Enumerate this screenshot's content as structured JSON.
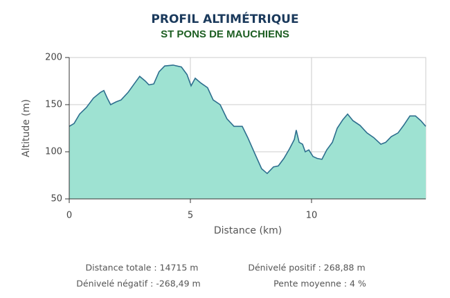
{
  "chart_data": {
    "type": "area",
    "title": "PROFIL ALTIMÉTRIQUE",
    "subtitle": "ST PONS DE MAUCHIENS",
    "x_label": "Distance (km)",
    "y_label": "Altitude (m)",
    "x": [
      0,
      0.2,
      0.43,
      0.71,
      1.0,
      1.29,
      1.43,
      1.57,
      1.71,
      1.94,
      2.14,
      2.43,
      2.71,
      2.91,
      3.14,
      3.29,
      3.49,
      3.71,
      3.94,
      4.29,
      4.63,
      4.86,
      5.03,
      5.2,
      5.43,
      5.71,
      5.94,
      6.23,
      6.51,
      6.8,
      7.14,
      7.37,
      7.66,
      7.94,
      8.17,
      8.43,
      8.63,
      8.86,
      9.09,
      9.29,
      9.37,
      9.49,
      9.63,
      9.74,
      9.89,
      10.06,
      10.23,
      10.43,
      10.63,
      10.86,
      11.06,
      11.29,
      11.49,
      11.71,
      12.0,
      12.29,
      12.57,
      12.86,
      13.06,
      13.29,
      13.57,
      13.8,
      14.06,
      14.29,
      14.51,
      14.715
    ],
    "series": [
      {
        "name": "Altitude",
        "color": "#2d6e8e",
        "fill": "#9ee2d2",
        "values": [
          127,
          130,
          140,
          147,
          157,
          163,
          165,
          157,
          150,
          153,
          155,
          163,
          173,
          180,
          175,
          171,
          172,
          185,
          191,
          192,
          190,
          182,
          170,
          178,
          173,
          168,
          155,
          150,
          135,
          127,
          127,
          115,
          98,
          82,
          77,
          84,
          85,
          93,
          103,
          113,
          123,
          110,
          108,
          100,
          102,
          95,
          93,
          92,
          102,
          110,
          125,
          134,
          140,
          133,
          128,
          120,
          115,
          108,
          110,
          116,
          120,
          128,
          138,
          138,
          133,
          127
        ]
      }
    ],
    "xlim": [
      0,
      14.715
    ],
    "ylim": [
      50,
      200
    ],
    "xticks": [
      0,
      5,
      10
    ],
    "yticks": [
      50,
      100,
      150,
      200
    ],
    "grid": true,
    "stats": [
      "Distance totale : 14715 m",
      "Dénivelé positif : 268,88 m",
      "Dénivelé négatif : -268,49 m",
      "Pente moyenne : 4 %"
    ]
  }
}
